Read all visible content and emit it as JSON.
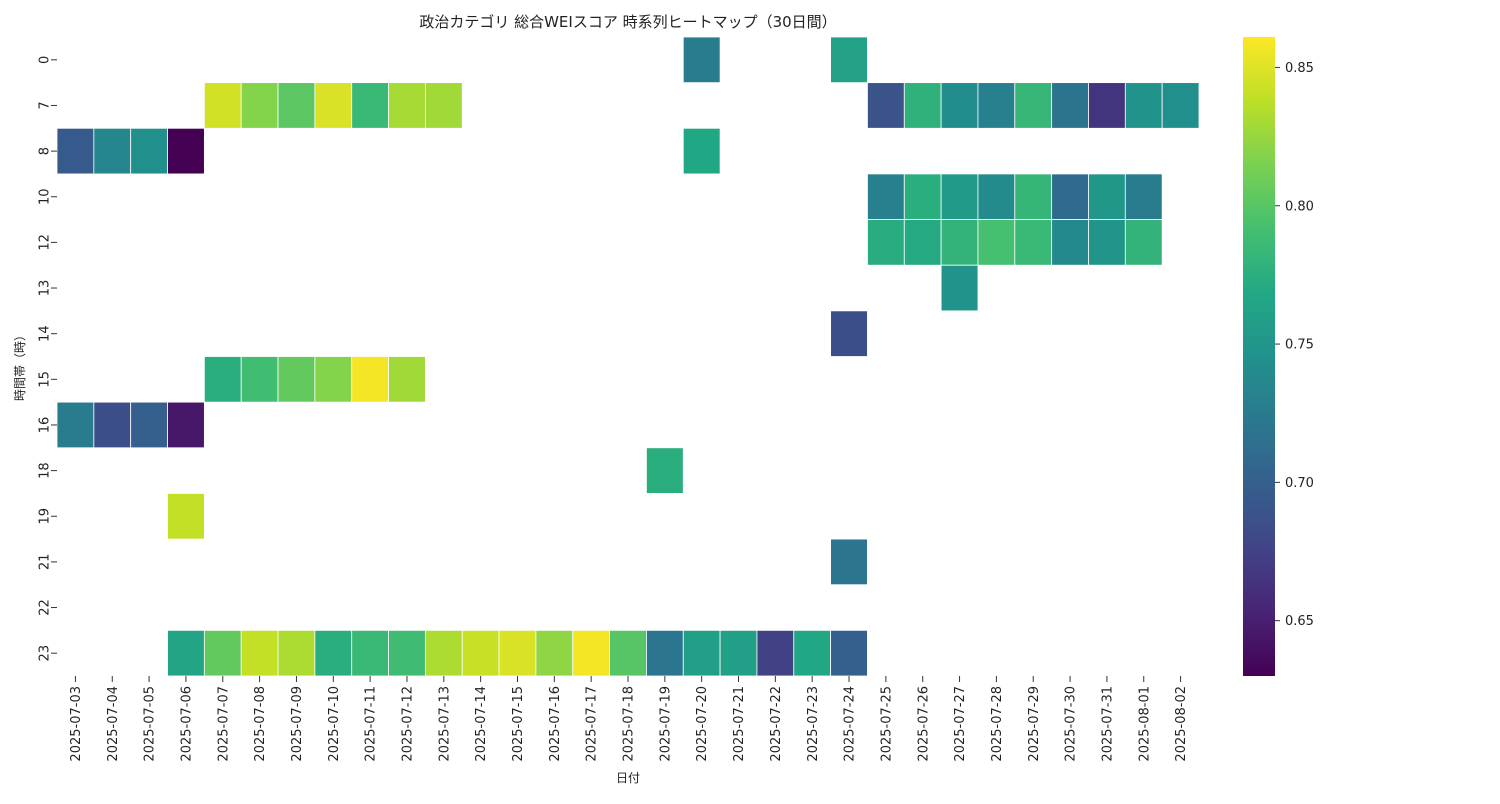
{
  "chart_data": {
    "type": "heatmap",
    "title": "政治カテゴリ 総合WEIスコア 時系列ヒートマップ（30日間）",
    "xlabel": "日付",
    "ylabel": "時間帯（時）",
    "colormap": "viridis",
    "missing_color": "#ffffff",
    "cell_edge_color": "#ffffff",
    "grid": false,
    "colorbar": {
      "placement": "right",
      "min": 0.63,
      "max": 0.861,
      "ticks": [
        "0.65",
        "0.70",
        "0.75",
        "0.80",
        "0.85"
      ]
    },
    "x": [
      "2025-07-03",
      "2025-07-04",
      "2025-07-05",
      "2025-07-06",
      "2025-07-07",
      "2025-07-08",
      "2025-07-09",
      "2025-07-10",
      "2025-07-11",
      "2025-07-12",
      "2025-07-13",
      "2025-07-14",
      "2025-07-15",
      "2025-07-16",
      "2025-07-17",
      "2025-07-18",
      "2025-07-19",
      "2025-07-20",
      "2025-07-21",
      "2025-07-22",
      "2025-07-23",
      "2025-07-24",
      "2025-07-25",
      "2025-07-26",
      "2025-07-27",
      "2025-07-28",
      "2025-07-29",
      "2025-07-30",
      "2025-07-31",
      "2025-08-01",
      "2025-08-02"
    ],
    "y": [
      "0",
      "7",
      "8",
      "10",
      "12",
      "13",
      "14",
      "15",
      "16",
      "18",
      "19",
      "21",
      "22",
      "23"
    ],
    "values": [
      [
        null,
        null,
        null,
        null,
        null,
        null,
        null,
        null,
        null,
        null,
        null,
        null,
        null,
        null,
        null,
        null,
        null,
        0.725,
        null,
        null,
        null,
        0.762,
        null,
        null,
        null,
        null,
        null,
        null,
        null,
        null,
        null
      ],
      [
        null,
        null,
        null,
        null,
        0.845,
        0.818,
        0.802,
        0.848,
        0.785,
        0.83,
        0.828,
        null,
        null,
        null,
        null,
        null,
        null,
        null,
        null,
        null,
        null,
        null,
        0.69,
        0.778,
        0.742,
        0.73,
        0.783,
        0.718,
        0.665,
        0.748,
        0.745
      ],
      [
        0.695,
        0.735,
        0.745,
        0.63,
        null,
        null,
        null,
        null,
        null,
        null,
        null,
        null,
        null,
        null,
        null,
        null,
        null,
        0.768,
        null,
        null,
        null,
        null,
        null,
        null,
        null,
        null,
        null,
        null,
        null,
        null,
        null
      ],
      [
        null,
        null,
        null,
        null,
        null,
        null,
        null,
        null,
        null,
        null,
        null,
        null,
        null,
        null,
        null,
        null,
        null,
        null,
        null,
        null,
        null,
        null,
        0.73,
        0.775,
        0.755,
        0.74,
        0.782,
        0.71,
        0.752,
        0.725,
        null
      ],
      [
        null,
        null,
        null,
        null,
        null,
        null,
        null,
        null,
        null,
        null,
        null,
        null,
        null,
        null,
        null,
        null,
        null,
        null,
        null,
        null,
        null,
        null,
        0.773,
        0.77,
        0.78,
        0.792,
        0.785,
        0.738,
        0.75,
        0.78,
        null
      ],
      [
        null,
        null,
        null,
        null,
        null,
        null,
        null,
        null,
        null,
        null,
        null,
        null,
        null,
        null,
        null,
        null,
        null,
        null,
        null,
        null,
        null,
        null,
        null,
        null,
        0.748,
        null,
        null,
        null,
        null,
        null,
        null
      ],
      [
        null,
        null,
        null,
        null,
        null,
        null,
        null,
        null,
        null,
        null,
        null,
        null,
        null,
        null,
        null,
        null,
        null,
        null,
        null,
        null,
        null,
        0.685,
        null,
        null,
        null,
        null,
        null,
        null,
        null,
        null,
        null
      ],
      [
        null,
        null,
        null,
        null,
        0.775,
        0.79,
        0.805,
        0.818,
        0.858,
        0.828,
        null,
        null,
        null,
        null,
        null,
        null,
        null,
        null,
        null,
        null,
        null,
        null,
        null,
        null,
        null,
        null,
        null,
        null,
        null,
        null,
        null
      ],
      [
        0.725,
        0.685,
        0.7,
        0.645,
        null,
        null,
        null,
        null,
        null,
        null,
        null,
        null,
        null,
        null,
        null,
        null,
        null,
        null,
        null,
        null,
        null,
        null,
        null,
        null,
        null,
        null,
        null,
        null,
        null,
        null,
        null
      ],
      [
        null,
        null,
        null,
        null,
        null,
        null,
        null,
        null,
        null,
        null,
        null,
        null,
        null,
        null,
        null,
        null,
        0.775,
        null,
        null,
        null,
        null,
        null,
        null,
        null,
        null,
        null,
        null,
        null,
        null,
        null,
        null
      ],
      [
        null,
        null,
        null,
        0.84,
        null,
        null,
        null,
        null,
        null,
        null,
        null,
        null,
        null,
        null,
        null,
        null,
        null,
        null,
        null,
        null,
        null,
        null,
        null,
        null,
        null,
        null,
        null,
        null,
        null,
        null,
        null
      ],
      [
        null,
        null,
        null,
        null,
        null,
        null,
        null,
        null,
        null,
        null,
        null,
        null,
        null,
        null,
        null,
        null,
        null,
        null,
        null,
        null,
        null,
        0.72,
        null,
        null,
        null,
        null,
        null,
        null,
        null,
        null,
        null
      ],
      [
        null,
        null,
        null,
        null,
        null,
        null,
        null,
        null,
        null,
        null,
        null,
        null,
        null,
        null,
        null,
        null,
        null,
        null,
        null,
        null,
        null,
        null,
        null,
        null,
        null,
        null,
        null,
        null,
        null,
        null,
        null
      ],
      [
        null,
        null,
        null,
        0.765,
        0.805,
        0.84,
        0.832,
        0.775,
        0.785,
        0.788,
        0.832,
        0.842,
        0.848,
        0.822,
        0.858,
        0.8,
        0.72,
        0.76,
        0.76,
        0.675,
        0.768,
        0.7,
        null,
        null,
        null,
        null,
        null,
        null,
        null,
        null,
        null
      ]
    ]
  }
}
